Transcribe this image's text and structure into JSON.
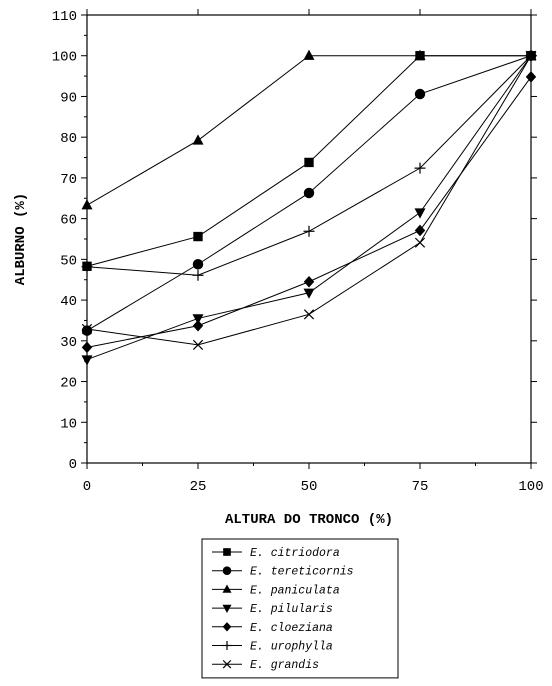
{
  "chart_data": {
    "type": "line",
    "xlabel": "ALTURA DO TRONCO (%)",
    "ylabel": "ALBURNO (%)",
    "x": [
      0,
      25,
      50,
      75,
      100
    ],
    "xlim": [
      0,
      100
    ],
    "ylim": [
      0,
      110
    ],
    "xticks": [
      "0",
      "25",
      "50",
      "75",
      "100"
    ],
    "yticks": [
      "0",
      "10",
      "20",
      "30",
      "40",
      "50",
      "60",
      "70",
      "80",
      "90",
      "100",
      "110"
    ],
    "grid": false,
    "legend_position": "bottom-center",
    "series": [
      {
        "name": "E. citriodora",
        "marker": "square",
        "values": [
          48.3,
          55.6,
          73.8,
          100,
          100
        ]
      },
      {
        "name": "E. tereticornis",
        "marker": "circle",
        "values": [
          32.5,
          48.8,
          66.3,
          90.6,
          100
        ]
      },
      {
        "name": "E. paniculata",
        "marker": "triangle-up",
        "values": [
          63.3,
          79.2,
          100,
          100,
          100
        ]
      },
      {
        "name": "E. pilularis",
        "marker": "triangle-down",
        "values": [
          25.4,
          35.5,
          41.8,
          61.5,
          100
        ]
      },
      {
        "name": "E. cloeziana",
        "marker": "diamond",
        "values": [
          28.4,
          33.7,
          44.5,
          57.1,
          94.8
        ]
      },
      {
        "name": "E. urophylla",
        "marker": "plus",
        "values": [
          48.2,
          46.1,
          56.9,
          72.4,
          100
        ]
      },
      {
        "name": "E. grandis",
        "marker": "cross",
        "values": [
          32.9,
          29,
          36.5,
          54.1,
          100
        ]
      }
    ]
  }
}
